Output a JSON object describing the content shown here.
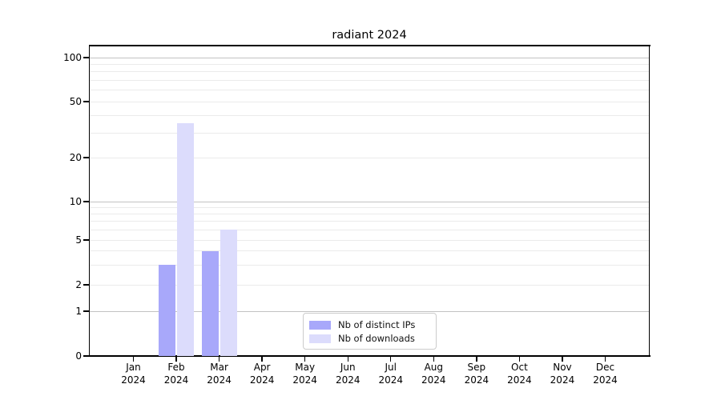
{
  "title": "radiant 2024",
  "chart_data": {
    "type": "bar",
    "title": "radiant 2024",
    "categories": [
      "Jan 2024",
      "Feb 2024",
      "Mar 2024",
      "Apr 2024",
      "May 2024",
      "Jun 2024",
      "Jul 2024",
      "Aug 2024",
      "Sep 2024",
      "Oct 2024",
      "Nov 2024",
      "Dec 2024"
    ],
    "series": [
      {
        "name": "Nb of distinct IPs",
        "color": "#a8a8fa",
        "values": [
          0,
          3,
          4,
          0,
          0,
          0,
          0,
          0,
          0,
          0,
          0,
          0
        ]
      },
      {
        "name": "Nb of downloads",
        "color": "#dcdcfc",
        "values": [
          0,
          35,
          6,
          0,
          0,
          0,
          0,
          0,
          0,
          0,
          0,
          0
        ]
      }
    ],
    "xlabel": "",
    "ylabel": "",
    "yscale": "symlog-like (log above 1, linear 0-1)",
    "ylim": [
      0,
      120
    ],
    "yticks_labeled": [
      0,
      1,
      2,
      5,
      10,
      20,
      50,
      100
    ],
    "yticks_minor": [
      3,
      4,
      6,
      7,
      8,
      9,
      30,
      40,
      60,
      70,
      80,
      90
    ],
    "major_grid_values": [
      1,
      10,
      100
    ],
    "grid": "horizontal",
    "legend_position": "lower center",
    "colors": {
      "distinct_ips_bar": "#a8a8fa",
      "downloads_bar": "#dcdcfc",
      "major_gridline": "#c2c2c2",
      "minor_gridline": "#ebebeb",
      "axis": "#000000",
      "background": "#ffffff"
    }
  }
}
